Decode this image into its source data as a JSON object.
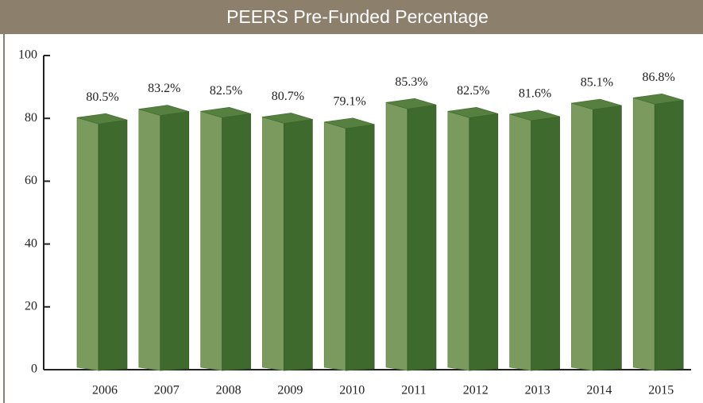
{
  "chart_data": {
    "type": "bar3d",
    "title": "PEERS Pre-Funded Percentage",
    "categories": [
      "2006",
      "2007",
      "2008",
      "2009",
      "2010",
      "2011",
      "2012",
      "2013",
      "2014",
      "2015"
    ],
    "values": [
      80.5,
      83.2,
      82.5,
      80.7,
      79.1,
      85.3,
      82.5,
      81.6,
      85.1,
      86.8
    ],
    "value_labels": [
      "80.5%",
      "83.2%",
      "82.5%",
      "80.7%",
      "79.1%",
      "85.3%",
      "82.5%",
      "81.6%",
      "85.1%",
      "86.8%"
    ],
    "colors": {
      "front": "#3e6a2e",
      "side": "#7a9a5e",
      "top": "#55803f"
    },
    "ylim": [
      0,
      100
    ],
    "yticks": [
      0,
      20,
      40,
      60,
      80,
      100
    ]
  }
}
